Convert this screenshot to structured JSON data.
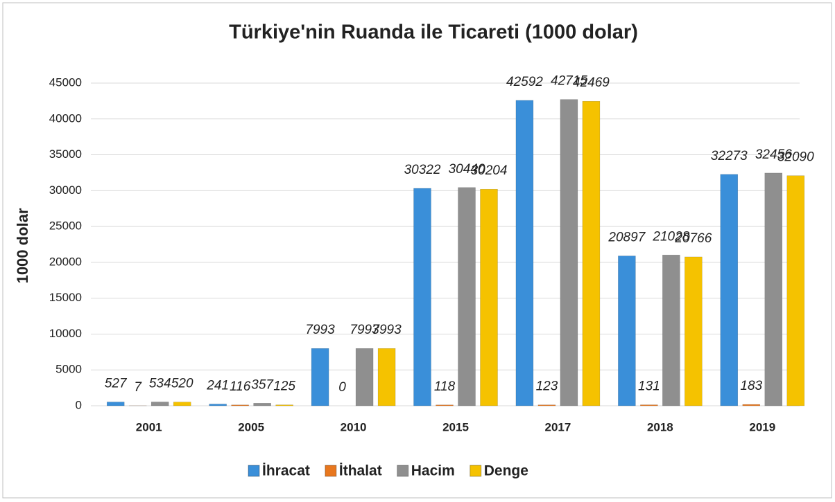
{
  "chart_data": {
    "type": "bar",
    "title": "Türkiye'nin Ruanda ile Ticareti (1000 dolar)",
    "y_label": "1000 dolar",
    "categories": [
      "2001",
      "2005",
      "2010",
      "2015",
      "2017",
      "2018",
      "2019"
    ],
    "series": [
      {
        "name": "İhracat",
        "color": "#3a8fd9",
        "values": [
          527,
          241,
          7993,
          30322,
          42592,
          20897,
          32273
        ]
      },
      {
        "name": "İthalat",
        "color": "#e8771e",
        "values": [
          7,
          116,
          0,
          118,
          123,
          131,
          183
        ]
      },
      {
        "name": "Hacim",
        "color": "#8f8f8f",
        "values": [
          534,
          357,
          7993,
          30440,
          42715,
          21028,
          32456
        ]
      },
      {
        "name": "Denge",
        "color": "#f5c200",
        "values": [
          520,
          125,
          7993,
          30204,
          42469,
          20766,
          32090
        ]
      }
    ],
    "ylim": [
      0,
      45000
    ],
    "yticks": [
      0,
      5000,
      10000,
      15000,
      20000,
      25000,
      30000,
      35000,
      40000,
      45000
    ],
    "grid": true,
    "legend": "bottom"
  }
}
